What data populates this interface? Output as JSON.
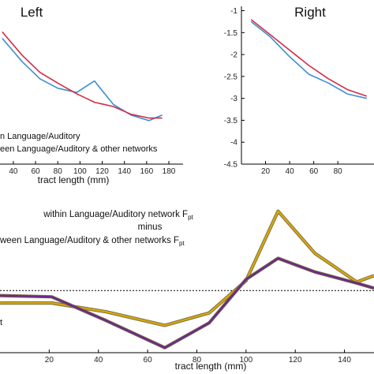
{
  "chart_data": [
    {
      "type": "line",
      "title": "Left",
      "xlabel": "tract length (mm)",
      "xticks": [
        40,
        60,
        80,
        100,
        120,
        140,
        160,
        180
      ],
      "xlim": [
        28,
        180
      ],
      "ylim": [
        -4.5,
        -0.8
      ],
      "legend": [
        "n Language/Auditory",
        "een Language/Auditory & other networks"
      ],
      "series": [
        {
          "color": "#3b8fd4",
          "x": [
            30,
            48,
            64,
            80,
            97,
            113,
            130,
            146,
            162,
            174
          ],
          "y": [
            -1.55,
            -2.1,
            -2.5,
            -2.72,
            -2.82,
            -2.55,
            -3.1,
            -3.35,
            -3.48,
            -3.35
          ]
        },
        {
          "color": "#d42b45",
          "x": [
            30,
            48,
            64,
            80,
            97,
            113,
            130,
            146,
            162,
            174
          ],
          "y": [
            -1.4,
            -1.95,
            -2.35,
            -2.6,
            -2.85,
            -3.05,
            -3.15,
            -3.33,
            -3.42,
            -3.42
          ]
        }
      ]
    },
    {
      "type": "line",
      "title": "Right",
      "xticks": [
        20,
        40,
        60,
        80
      ],
      "yticks": [
        -1,
        -1.5,
        -2,
        -2.5,
        -3,
        -3.5,
        -4,
        -4.5
      ],
      "xlim": [
        0,
        110
      ],
      "ylim": [
        -4.5,
        -0.9
      ],
      "series": [
        {
          "color": "#3b8fd4",
          "x": [
            8,
            24,
            40,
            56,
            72,
            88,
            104
          ],
          "y": [
            -1.25,
            -1.6,
            -2.05,
            -2.45,
            -2.65,
            -2.9,
            -3.0
          ]
        },
        {
          "color": "#d42b45",
          "x": [
            8,
            24,
            40,
            56,
            72,
            88,
            104
          ],
          "y": [
            -1.2,
            -1.55,
            -1.9,
            -2.25,
            -2.55,
            -2.8,
            -2.95
          ]
        }
      ]
    },
    {
      "type": "line",
      "annotation": [
        "within Language/Auditory network F",
        "minus",
        "ween Language/Auditory & other networks F"
      ],
      "annotation_sub": "pt",
      "xlabel": "tract length (mm)",
      "xticks": [
        20,
        40,
        60,
        80,
        100,
        120,
        140
      ],
      "xlim": [
        0,
        152
      ],
      "ylim": [
        -2.5,
        3.6
      ],
      "reference_line": 0,
      "legend_fragment": "t",
      "series": [
        {
          "color": "#d4a80f",
          "x": [
            0,
            21,
            43,
            67,
            85,
            100,
            113,
            128,
            145,
            152
          ],
          "y": [
            -0.5,
            -0.5,
            -0.85,
            -1.4,
            -0.9,
            0.4,
            3.2,
            1.5,
            0.35,
            0.6
          ]
        },
        {
          "color": "#6a2a8c",
          "x": [
            0,
            21,
            43,
            67,
            85,
            100,
            113,
            128,
            145,
            152
          ],
          "y": [
            -0.2,
            -0.25,
            -1.2,
            -2.3,
            -1.3,
            0.45,
            1.3,
            0.75,
            0.3,
            0.1
          ]
        }
      ]
    }
  ]
}
